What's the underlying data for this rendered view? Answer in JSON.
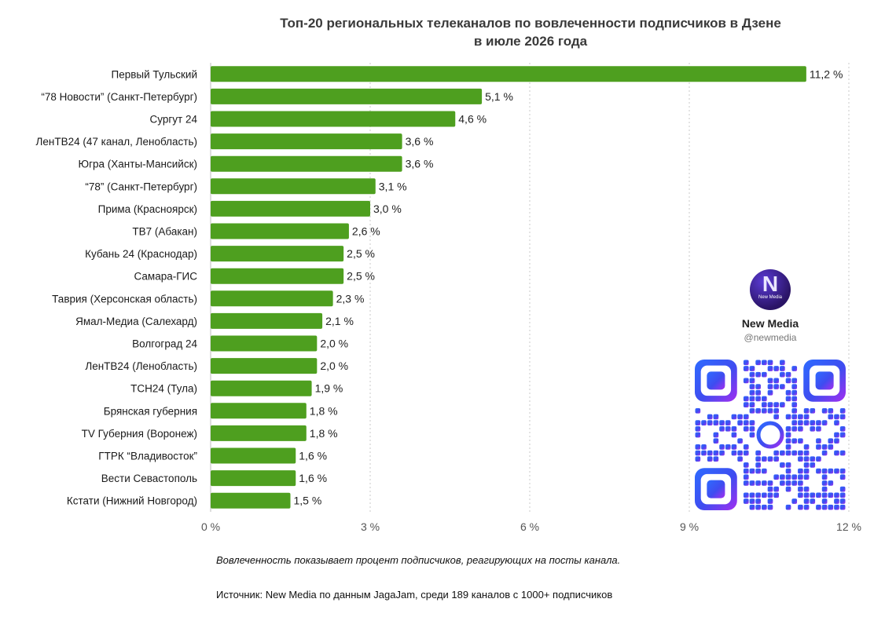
{
  "chart_data": {
    "type": "bar",
    "orientation": "horizontal",
    "title": "Топ-20 региональных телеканалов по вовлеченности подписчиков в Дзене в июле 2026 года",
    "title_lines": [
      "Топ-20 региональных телеканалов по вовлеченности подписчиков в Дзене",
      "в июле 2026 года"
    ],
    "categories": [
      "Первый Тульский",
      "“78 Новости” (Санкт-Петербург)",
      "Сургут 24",
      "ЛенТВ24 (47 канал, Ленобласть)",
      "Югра (Ханты-Мансийск)",
      "“78” (Санкт-Петербург)",
      "Прима (Красноярск)",
      "ТВ7 (Абакан)",
      "Кубань 24 (Краснодар)",
      "Самара-ГИС",
      "Таврия (Херсонская область)",
      "Ямал-Медиа (Салехард)",
      "Волгоград 24",
      "ЛенТВ24 (Ленобласть)",
      "ТСН24 (Тула)",
      "Брянская губерния",
      "TV Губерния (Воронеж)",
      "ГТРК “Владивосток”",
      "Вести Севастополь",
      "Кстати (Нижний Новгород)"
    ],
    "values": [
      11.2,
      5.1,
      4.6,
      3.6,
      3.6,
      3.1,
      3.0,
      2.6,
      2.5,
      2.5,
      2.3,
      2.1,
      2.0,
      2.0,
      1.9,
      1.8,
      1.8,
      1.6,
      1.6,
      1.5
    ],
    "value_labels": [
      "11,2 %",
      "5,1 %",
      "4,6 %",
      "3,6 %",
      "3,6 %",
      "3,1 %",
      "3,0 %",
      "2,6 %",
      "2,5 %",
      "2,5 %",
      "2,3 %",
      "2,1 %",
      "2,0 %",
      "2,0 %",
      "1,9 %",
      "1,8 %",
      "1,8 %",
      "1,6 %",
      "1,6 %",
      "1,5 %"
    ],
    "xlim": [
      0,
      12
    ],
    "x_ticks": [
      0,
      3,
      6,
      9,
      12
    ],
    "x_tick_labels": [
      "0 %",
      "3 %",
      "6 %",
      "9 %",
      "12 %"
    ],
    "grid": "vertical dotted",
    "bar_color": "#4e9f1f"
  },
  "notes": {
    "footnote": "Вовлеченность показывает процент подписчиков, реагирующих на посты канала.",
    "source": "Источник: New Media по данным JagaJam, среди 189 каналов с 1000+ подписчиков"
  },
  "brand": {
    "logo_text": "New Media",
    "name": "New Media",
    "handle": "@newmedia"
  }
}
